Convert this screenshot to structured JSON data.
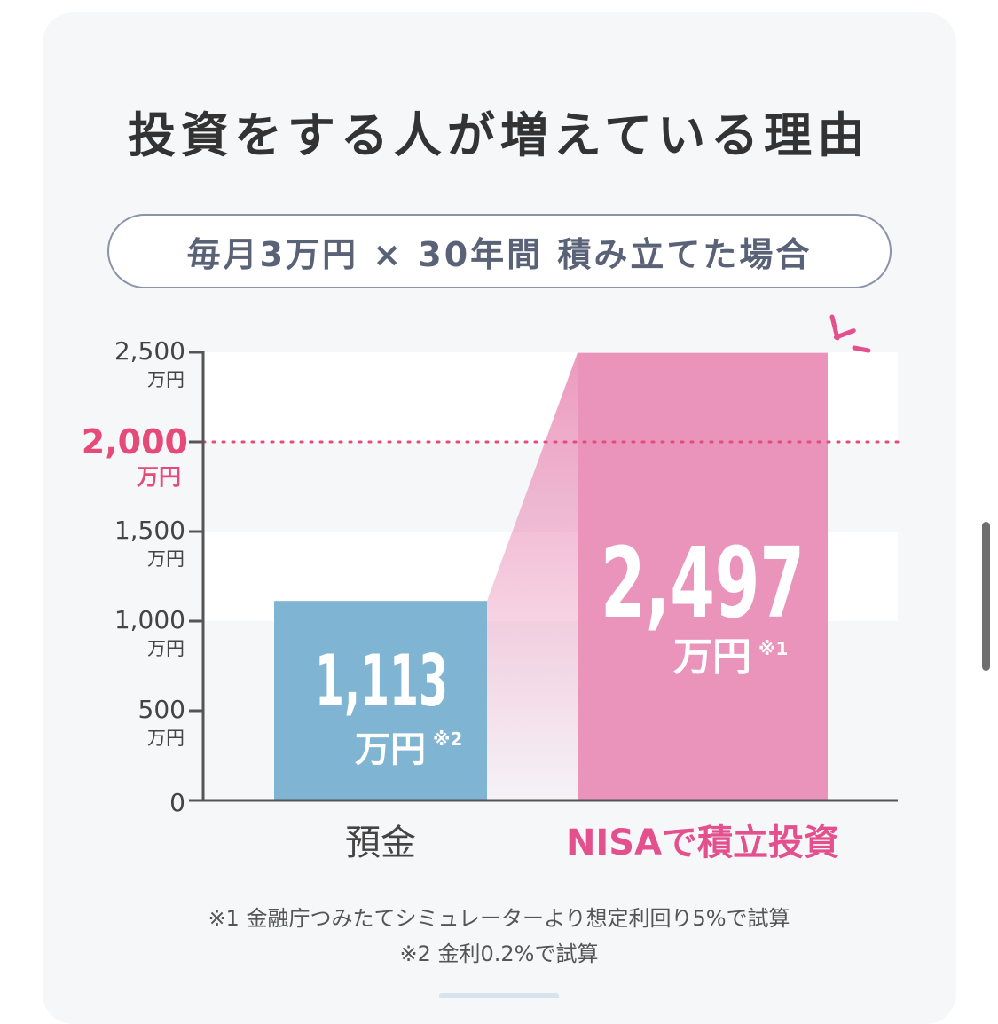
{
  "title": "投資をする人が増えている理由",
  "subtitle": "毎月3万円 × 30年間 積み立てた場合",
  "footnotes": [
    "※1 金融庁つみたてシミュレーターより想定利回り5%で試算",
    "※2 金利0.2%で試算"
  ],
  "colors": {
    "deposit_bar": "#7fb4d2",
    "nisa_bar": "#ea94bb",
    "nisa_label": "#e4508e",
    "threshold": "#e64a78",
    "axis": "#555555",
    "band": "#ffffff"
  },
  "chart_data": {
    "type": "bar",
    "categories": [
      "預金",
      "NISAで積立投資"
    ],
    "values": [
      1113,
      2497
    ],
    "value_labels": [
      "1,113",
      "2,497"
    ],
    "unit": "万円",
    "value_notes": [
      "※2",
      "※1"
    ],
    "ylim": [
      0,
      2500
    ],
    "yticks": [
      {
        "value": 0,
        "label": "0",
        "unit": ""
      },
      {
        "value": 500,
        "label": "500",
        "unit": "万円"
      },
      {
        "value": 1000,
        "label": "1,000",
        "unit": "万円"
      },
      {
        "value": 1500,
        "label": "1,500",
        "unit": "万円"
      },
      {
        "value": 2500,
        "label": "2,500",
        "unit": "万円"
      }
    ],
    "threshold": {
      "value": 2000,
      "label": "2,000",
      "unit": "万円"
    },
    "grid": "alternating bands"
  }
}
